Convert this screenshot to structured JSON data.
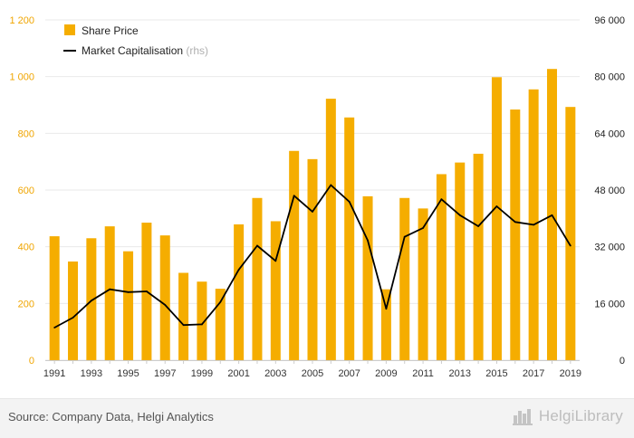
{
  "chart_data": {
    "type": "bar",
    "categories": [
      "1991",
      "1992",
      "1993",
      "1994",
      "1995",
      "1996",
      "1997",
      "1998",
      "1999",
      "2000",
      "2001",
      "2002",
      "2003",
      "2004",
      "2005",
      "2006",
      "2007",
      "2008",
      "2009",
      "2010",
      "2011",
      "2012",
      "2013",
      "2014",
      "2015",
      "2016",
      "2017",
      "2018",
      "2019"
    ],
    "x_tick_labels": [
      "1991",
      "1993",
      "1995",
      "1997",
      "1999",
      "2001",
      "2003",
      "2005",
      "2007",
      "2009",
      "2011",
      "2013",
      "2015",
      "2017",
      "2019"
    ],
    "series": [
      {
        "name": "Share Price",
        "type": "bar",
        "axis": "left",
        "color": "#f5ad00",
        "values": [
          437,
          348,
          430,
          472,
          384,
          485,
          440,
          308,
          277,
          252,
          479,
          572,
          490,
          738,
          709,
          922,
          856,
          578,
          250,
          572,
          535,
          656,
          697,
          728,
          998,
          884,
          955,
          1027,
          893
        ]
      },
      {
        "name": "Market Capitalisation",
        "type": "line",
        "axis": "right",
        "color": "#000000",
        "values": [
          9200,
          12000,
          16800,
          20000,
          19200,
          19400,
          15600,
          9900,
          10100,
          16400,
          25500,
          32300,
          28000,
          46400,
          41900,
          49400,
          44700,
          33800,
          14500,
          34800,
          37300,
          45400,
          40900,
          37800,
          43400,
          39000,
          38200,
          40900,
          32300
        ]
      }
    ],
    "legend": [
      {
        "label": "Share Price",
        "suffix": ""
      },
      {
        "label": "Market Capitalisation",
        "suffix": "(rhs)"
      }
    ],
    "legend_position": "top-left",
    "y_left": {
      "min": 0,
      "max": 1200,
      "ticks": [
        "0",
        "200",
        "400",
        "600",
        "800",
        "1 000",
        "1 200"
      ]
    },
    "y_right": {
      "min": 0,
      "max": 96000,
      "ticks": [
        "0",
        "16 000",
        "32 000",
        "48 000",
        "64 000",
        "80 000",
        "96 000"
      ]
    },
    "grid": true
  },
  "footer": {
    "source": "Source: Company Data, Helgi Analytics",
    "logo_text": "HelgiLibrary"
  },
  "colors": {
    "bar": "#f5ad00",
    "line": "#000000",
    "left_axis_text": "#f0a500",
    "right_axis_text": "#222222",
    "grid": "#e9e9e9"
  }
}
